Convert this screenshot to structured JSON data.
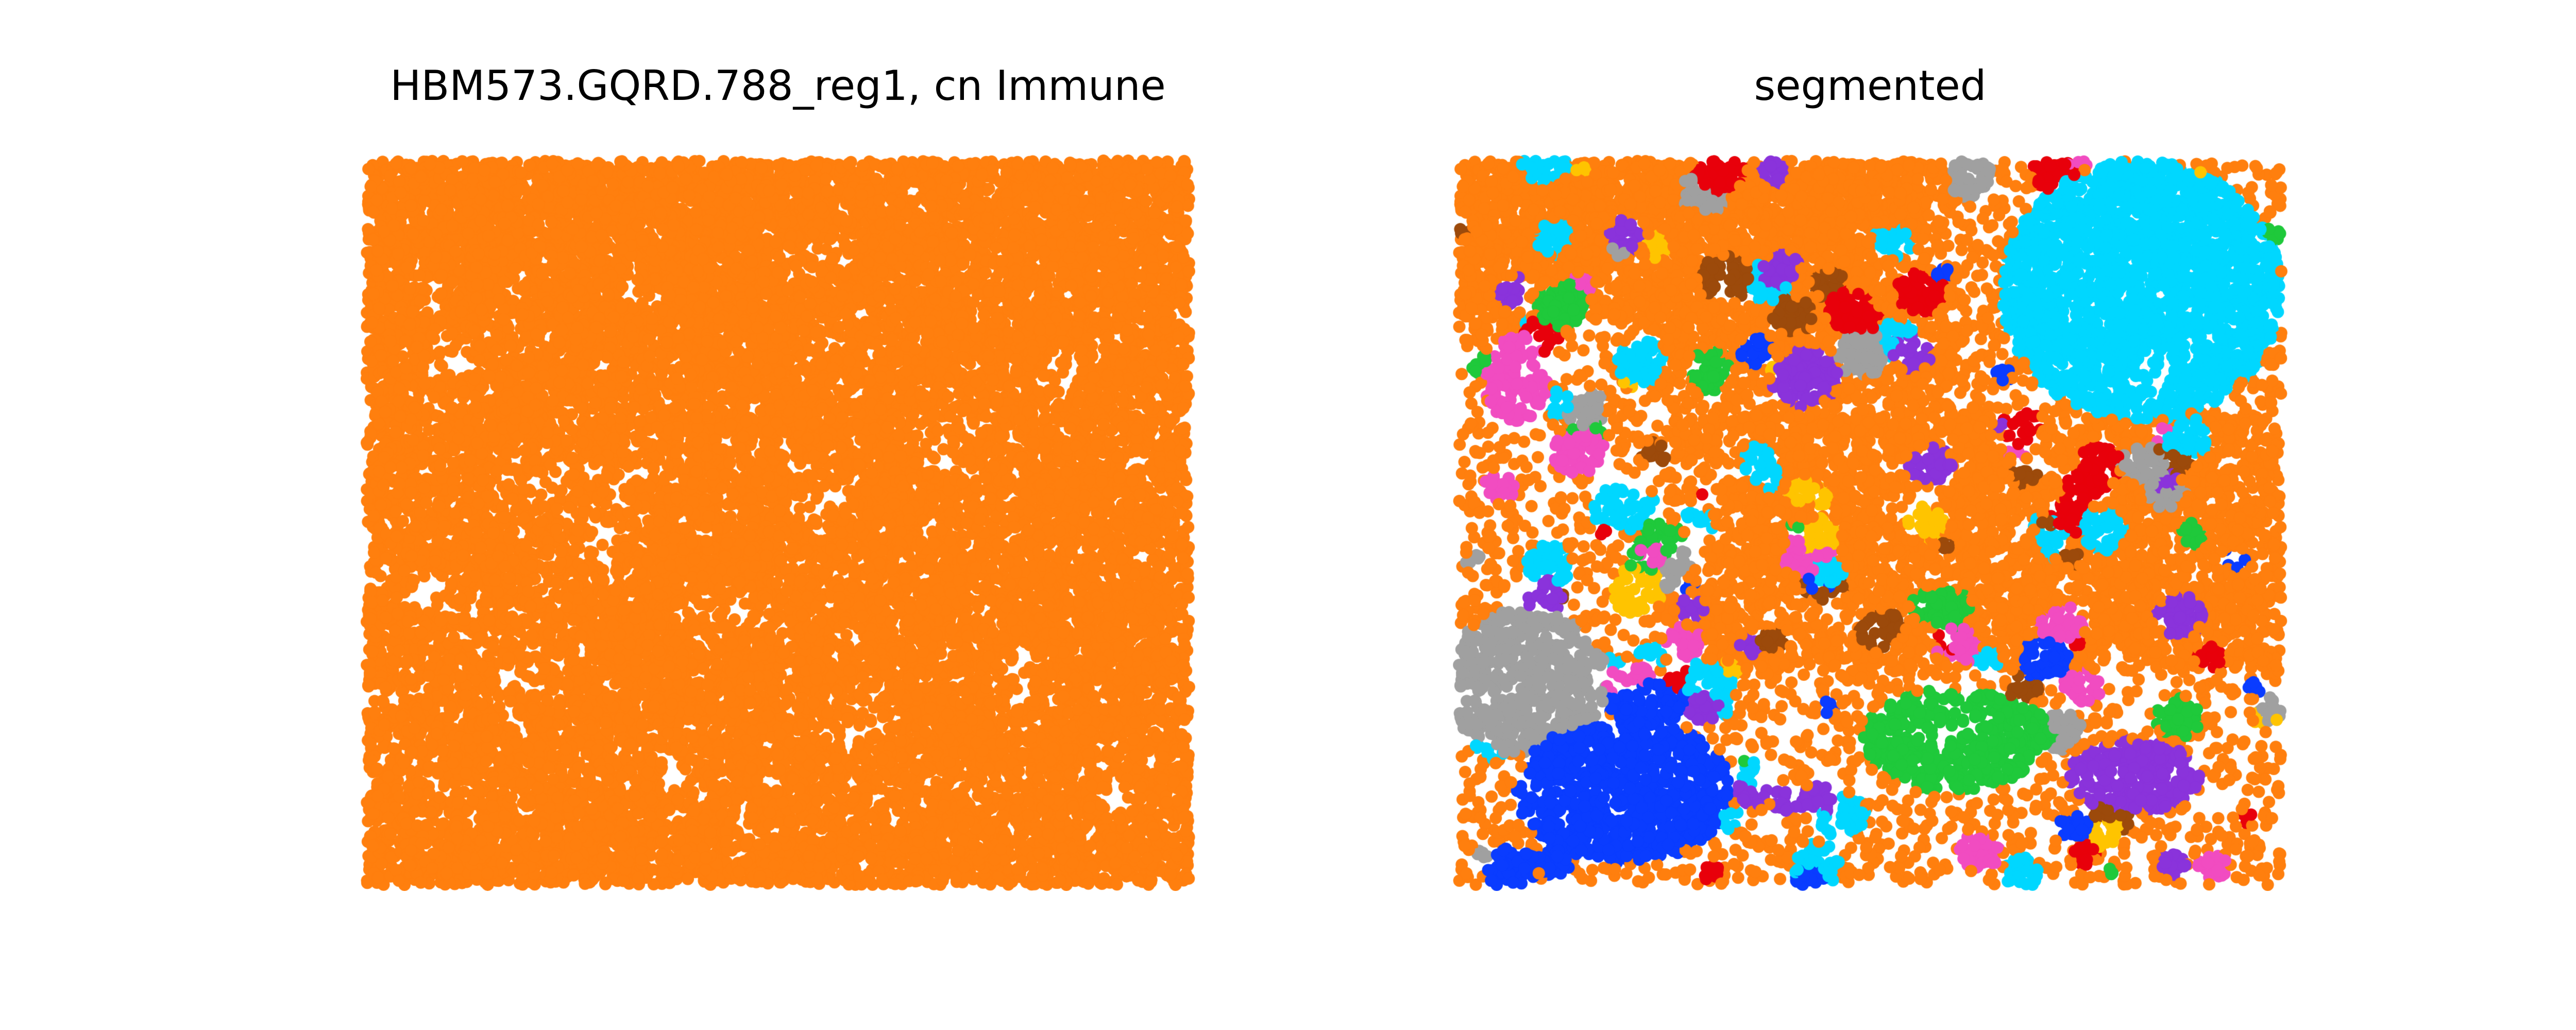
{
  "chart_data": [
    {
      "type": "scatter",
      "title": "HBM573.GQRD.788_reg1, cn Immune",
      "xlabel": "",
      "ylabel": "",
      "axes_visible": false,
      "grid": false,
      "legend": "none",
      "point_color": "#ff7f0e",
      "description_series": [
        {
          "color": "#ff7f0e",
          "values": "dense point cloud covering nearly the whole field"
        }
      ]
    },
    {
      "type": "scatter",
      "title": "segmented",
      "xlabel": "",
      "ylabel": "",
      "axes_visible": false,
      "grid": false,
      "legend": "none",
      "segment_colors": {
        "orange": "#ff7f0e",
        "cyan": "#00d7ff",
        "blue": "#0a3cff",
        "green": "#1fc93b",
        "purple": "#8a33db",
        "gray": "#a0a0a0",
        "brown": "#9c4a0b",
        "red": "#e8000b",
        "pink": "#f14cc1",
        "yellow": "#ffc400"
      }
    }
  ]
}
